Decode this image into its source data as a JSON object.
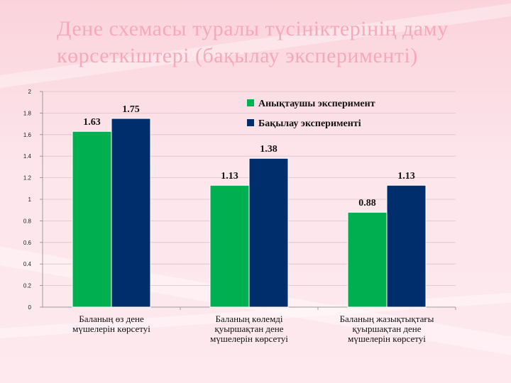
{
  "slide": {
    "title_line1": "Дене схемасы туралы түсініктерінің даму",
    "title_line2": "көрсеткіштері (бақылау эксперименті)"
  },
  "chart_data": {
    "type": "bar",
    "categories": [
      [
        "Баланың өз дене",
        "мүшелерін көрсетуі"
      ],
      [
        "Баланың көлемді",
        "қуыршақтан дене",
        "мүшелерін көрсетуі"
      ],
      [
        "Баланың жазықтықтағы",
        "қуыршақтан дене",
        "мүшелерін көрсетуі"
      ]
    ],
    "series": [
      {
        "name": "Анықтаушы эксперимент",
        "values": [
          1.63,
          1.13,
          0.88
        ],
        "labels": [
          "1.63",
          "1.13",
          "0.88"
        ],
        "color": "#00b050"
      },
      {
        "name": "Бақылау эксперименті",
        "values": [
          1.75,
          1.38,
          1.13
        ],
        "labels": [
          "1.75",
          "1.38",
          "1.13"
        ],
        "color": "#002d6b"
      }
    ],
    "ylim": [
      0,
      2
    ],
    "yticks": [
      "0",
      "0.2",
      "0.4",
      "0.6",
      "0.8",
      "1",
      "1.2",
      "1.4",
      "1.6",
      "1.8",
      "2"
    ],
    "grid": true,
    "legend_position": "top-right"
  }
}
